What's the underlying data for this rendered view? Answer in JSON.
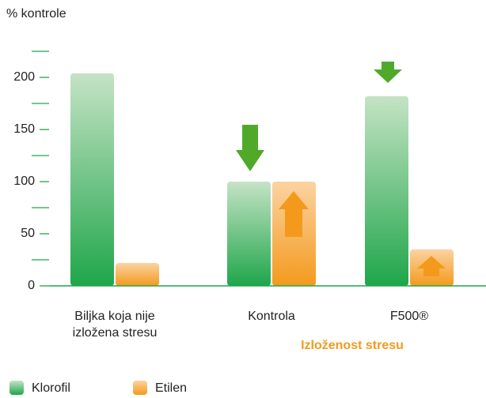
{
  "chart_data": {
    "type": "bar",
    "y_label": "% kontrole",
    "x_label": "Izloženost stresu",
    "categories": [
      "Biljka koja nije izložena stresu",
      "Kontrola",
      "F500®"
    ],
    "series": [
      {
        "name": "Klorofil",
        "color": "#1fa64a",
        "values": [
          204,
          100,
          182
        ]
      },
      {
        "name": "Etilen",
        "color": "#f39a1c",
        "values": [
          22,
          100,
          35
        ]
      }
    ],
    "ylim": [
      0,
      225
    ],
    "yticks": [
      0,
      50,
      100,
      150,
      200
    ],
    "yminor_ticks": [
      25,
      75,
      125,
      175,
      225
    ]
  }
}
